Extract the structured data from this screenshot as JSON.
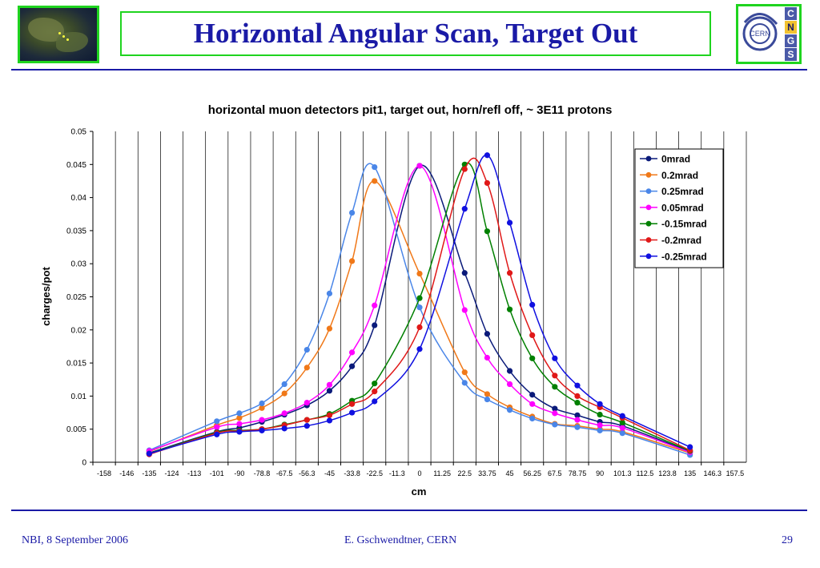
{
  "slide": {
    "title": "Horizontal Angular Scan, Target Out",
    "footer_left": "NBI, 8 September 2006",
    "footer_center": "E. Gschwendtner, CERN",
    "footer_right": "29",
    "logo_right_text": "CERN",
    "logo_right_letters": [
      "C",
      "N",
      "G",
      "S"
    ],
    "accent_color": "#1a1aa6",
    "frame_color": "#1fd41f"
  },
  "chart_data": {
    "type": "line",
    "title": "horizontal muon detectors pit1, target out, horn/refl off, ~ 3E11 protons",
    "xlabel": "cm",
    "ylabel": "charges/pot",
    "ylim": [
      0,
      0.05
    ],
    "yticks": [
      "0",
      "0.005",
      "0.01",
      "0.015",
      "0.02",
      "0.025",
      "0.03",
      "0.035",
      "0.04",
      "0.045",
      "0.05"
    ],
    "x_categories": [
      "-158",
      "-146",
      "-135",
      "-124",
      "-113",
      "-101",
      "-90",
      "-78.8",
      "-67.5",
      "-56.3",
      "-45",
      "-33.8",
      "-22.5",
      "-11.3",
      "0",
      "11.25",
      "22.5",
      "33.75",
      "45",
      "56.25",
      "67.5",
      "78.75",
      "90",
      "101.3",
      "112.5",
      "123.8",
      "135",
      "146.3",
      "157.5"
    ],
    "grid": "vertical",
    "legend_position": "top-right",
    "series": [
      {
        "name": "0mrad",
        "color": "#0a1a7a",
        "x_index": [
          2,
          5,
          6,
          7,
          8,
          9,
          10,
          11,
          12,
          14,
          16,
          17,
          18,
          19,
          20,
          21,
          22,
          23,
          26
        ],
        "y": [
          0.0014,
          0.0046,
          0.0052,
          0.0061,
          0.0072,
          0.0086,
          0.0108,
          0.0145,
          0.0207,
          0.0448,
          0.0286,
          0.0194,
          0.0138,
          0.0102,
          0.0081,
          0.0071,
          0.0061,
          0.0055,
          0.0016
        ]
      },
      {
        "name": "0.2mrad",
        "color": "#f07818",
        "x_index": [
          2,
          5,
          6,
          7,
          8,
          9,
          10,
          11,
          12,
          14,
          16,
          17,
          18,
          19,
          20,
          21,
          22,
          23,
          26
        ],
        "y": [
          0.0016,
          0.0056,
          0.0067,
          0.0082,
          0.0104,
          0.0143,
          0.0202,
          0.0304,
          0.0425,
          0.0285,
          0.0136,
          0.0103,
          0.0083,
          0.0069,
          0.0058,
          0.0055,
          0.005,
          0.0046,
          0.0014
        ]
      },
      {
        "name": "0.25mrad",
        "color": "#4a86e8",
        "x_index": [
          2,
          5,
          6,
          7,
          8,
          9,
          10,
          11,
          12,
          14,
          16,
          17,
          18,
          19,
          20,
          21,
          22,
          23,
          26
        ],
        "y": [
          0.0018,
          0.0062,
          0.0074,
          0.0089,
          0.0118,
          0.017,
          0.0255,
          0.0377,
          0.0446,
          0.0234,
          0.012,
          0.0095,
          0.0079,
          0.0066,
          0.0057,
          0.0053,
          0.0048,
          0.0044,
          0.0011
        ]
      },
      {
        "name": "0.05mrad",
        "color": "#ff00ff",
        "x_index": [
          2,
          5,
          6,
          7,
          8,
          9,
          10,
          11,
          12,
          14,
          16,
          17,
          18,
          19,
          20,
          21,
          22,
          23,
          26
        ],
        "y": [
          0.0017,
          0.0053,
          0.0058,
          0.0064,
          0.0074,
          0.009,
          0.0117,
          0.0166,
          0.0237,
          0.0448,
          0.023,
          0.0158,
          0.0118,
          0.0088,
          0.0074,
          0.0064,
          0.0056,
          0.0052,
          0.0015
        ]
      },
      {
        "name": "-0.15mrad",
        "color": "#008000",
        "x_index": [
          2,
          5,
          6,
          7,
          8,
          9,
          10,
          11,
          12,
          14,
          16,
          17,
          18,
          19,
          20,
          21,
          22,
          23,
          26
        ],
        "y": [
          0.0013,
          0.0045,
          0.0048,
          0.005,
          0.0057,
          0.0064,
          0.0073,
          0.0093,
          0.0119,
          0.0248,
          0.045,
          0.0349,
          0.0231,
          0.0157,
          0.0114,
          0.009,
          0.0072,
          0.006,
          0.0017
        ]
      },
      {
        "name": "-0.2mrad",
        "color": "#e01818",
        "x_index": [
          2,
          5,
          6,
          7,
          8,
          9,
          10,
          11,
          12,
          14,
          16,
          17,
          18,
          19,
          20,
          21,
          22,
          23,
          26
        ],
        "y": [
          0.0012,
          0.0044,
          0.0047,
          0.005,
          0.0056,
          0.0064,
          0.0071,
          0.0088,
          0.0107,
          0.0204,
          0.0443,
          0.0422,
          0.0286,
          0.0192,
          0.0131,
          0.01,
          0.0083,
          0.0067,
          0.0018
        ]
      },
      {
        "name": "-0.25mrad",
        "color": "#1010e0",
        "x_index": [
          2,
          5,
          6,
          7,
          8,
          9,
          10,
          11,
          12,
          14,
          16,
          17,
          18,
          19,
          20,
          21,
          22,
          23,
          26
        ],
        "y": [
          0.0013,
          0.0042,
          0.0046,
          0.0048,
          0.0051,
          0.0055,
          0.0063,
          0.0075,
          0.0092,
          0.0171,
          0.0383,
          0.0464,
          0.0362,
          0.0238,
          0.0157,
          0.0116,
          0.0088,
          0.007,
          0.0023
        ]
      }
    ]
  }
}
